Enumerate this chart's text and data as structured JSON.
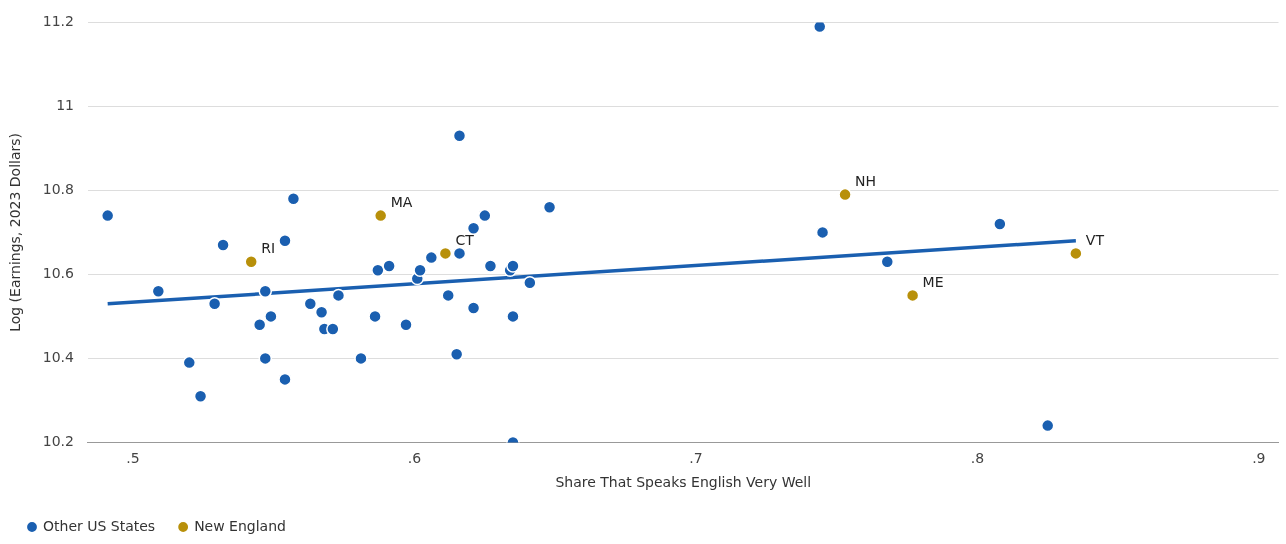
{
  "chart_data": {
    "type": "scatter",
    "xlabel": "Share That Speaks English Very Well",
    "ylabel": "Log (Earnings, 2023 Dollars)",
    "xlim": [
      0.484,
      0.907
    ],
    "xticks": [
      {
        "value": 0.5,
        "label": ".5"
      },
      {
        "value": 0.6,
        "label": ".6"
      },
      {
        "value": 0.7,
        "label": ".7"
      },
      {
        "value": 0.8,
        "label": ".8"
      },
      {
        "value": 0.9,
        "label": ".9"
      }
    ],
    "ylim": [
      10.2,
      11.2
    ],
    "yticks": [
      10.2,
      10.4,
      10.6,
      10.8,
      11,
      11.2
    ],
    "grid": "y",
    "legend": "bottom left",
    "marker": "circle",
    "series": [
      {
        "name": "Other US States",
        "color": "#1a5fb0",
        "x": [
          0.491,
          0.509,
          0.52,
          0.524,
          0.529,
          0.532,
          0.545,
          0.547,
          0.547,
          0.549,
          0.554,
          0.554,
          0.557,
          0.563,
          0.567,
          0.568,
          0.571,
          0.573,
          0.581,
          0.586,
          0.587,
          0.591,
          0.597,
          0.601,
          0.602,
          0.606,
          0.612,
          0.615,
          0.616,
          0.616,
          0.621,
          0.621,
          0.625,
          0.627,
          0.634,
          0.635,
          0.635,
          0.635,
          0.641,
          0.648,
          0.744,
          0.745,
          0.768,
          0.808,
          0.825
        ],
        "values": [
          10.74,
          10.56,
          10.39,
          10.31,
          10.53,
          10.67,
          10.48,
          10.56,
          10.4,
          10.5,
          10.68,
          10.35,
          10.78,
          10.53,
          10.51,
          10.47,
          10.47,
          10.55,
          10.4,
          10.5,
          10.61,
          10.62,
          10.48,
          10.59,
          10.61,
          10.64,
          10.55,
          10.41,
          10.93,
          10.65,
          10.52,
          10.71,
          10.74,
          10.62,
          10.61,
          10.62,
          10.5,
          10.2,
          10.58,
          10.76,
          11.19,
          10.7,
          10.63,
          10.72,
          10.24
        ]
      },
      {
        "name": "New England",
        "color": "#b8900a",
        "x": [
          0.542,
          0.588,
          0.611,
          0.753,
          0.777,
          0.835
        ],
        "values": [
          10.63,
          10.74,
          10.65,
          10.79,
          10.55,
          10.65
        ]
      },
      {
        "type": "line",
        "marker": "none",
        "color": "#1a5fb0",
        "x": [
          0.491,
          0.835
        ],
        "values": [
          10.53,
          10.68
        ]
      }
    ],
    "annotations": [
      {
        "text": "RI",
        "x": 0.542,
        "y": 10.63
      },
      {
        "text": "MA",
        "x": 0.588,
        "y": 10.74
      },
      {
        "text": "CT",
        "x": 0.611,
        "y": 10.65
      },
      {
        "text": "NH",
        "x": 0.753,
        "y": 10.79
      },
      {
        "text": "ME",
        "x": 0.777,
        "y": 10.55
      },
      {
        "text": "VT",
        "x": 0.835,
        "y": 10.65
      }
    ]
  }
}
